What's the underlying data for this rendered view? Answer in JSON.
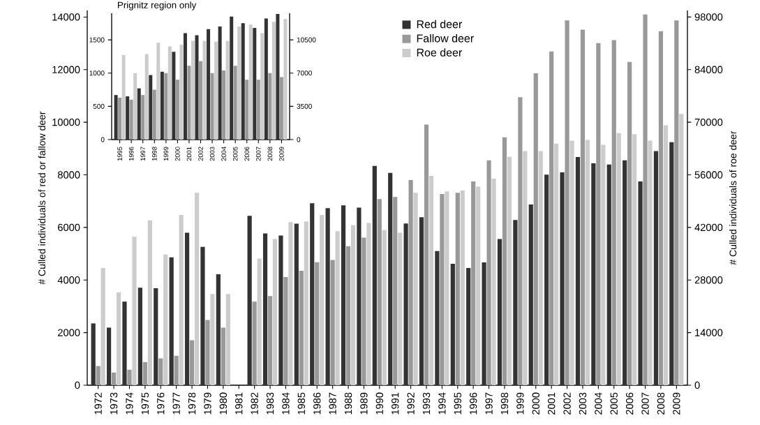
{
  "chart_data": [
    {
      "type": "bar",
      "categories": [
        "1972",
        "1973",
        "1974",
        "1975",
        "1976",
        "1977",
        "1978",
        "1979",
        "1980",
        "1981",
        "1982",
        "1983",
        "1984",
        "1985",
        "1986",
        "1987",
        "1988",
        "1989",
        "1990",
        "1991",
        "1992",
        "1993",
        "1994",
        "1995",
        "1996",
        "1997",
        "1998",
        "1999",
        "2000",
        "2001",
        "2002",
        "2003",
        "2004",
        "2005",
        "2006",
        "2007",
        "2008",
        "2009"
      ],
      "series": [
        {
          "name": "Red deer",
          "color": "#333333",
          "values": [
            2350,
            2190,
            3180,
            3710,
            3690,
            4860,
            5800,
            5260,
            4220,
            null,
            6440,
            5770,
            5690,
            6140,
            6920,
            6730,
            6840,
            6750,
            8340,
            8070,
            6150,
            6390,
            5100,
            4620,
            4460,
            4670,
            5560,
            6280,
            6870,
            8010,
            8090,
            8680,
            8440,
            8390,
            8550,
            7750,
            8900,
            9240
          ]
        },
        {
          "name": "Fallow deer",
          "color": "#999999",
          "values": [
            730,
            480,
            590,
            880,
            1020,
            1120,
            1710,
            2480,
            2190,
            null,
            3180,
            3390,
            4110,
            4350,
            4680,
            4760,
            5290,
            5610,
            7080,
            7160,
            7800,
            9910,
            7270,
            7320,
            7750,
            8550,
            9430,
            10950,
            11860,
            12690,
            13870,
            13520,
            13010,
            13120,
            12290,
            14100,
            13460,
            13870
          ]
        },
        {
          "name": "Roe deer",
          "color": "#cccccc",
          "axis": "y2",
          "values": [
            31200,
            24700,
            39500,
            43900,
            34800,
            45300,
            51200,
            24300,
            24300,
            null,
            33700,
            38900,
            43400,
            43600,
            45300,
            41000,
            42600,
            43200,
            41300,
            40600,
            51200,
            55700,
            51600,
            51800,
            52900,
            55000,
            60800,
            62300,
            62300,
            64300,
            65100,
            65300,
            64000,
            67100,
            66800,
            65100,
            69200,
            72200
          ]
        }
      ],
      "ylim": [
        0,
        14250
      ],
      "yticks": [
        0,
        2000,
        4000,
        6000,
        8000,
        10000,
        12000,
        14000
      ],
      "y2lim": [
        0,
        99750
      ],
      "y2ticks": [
        0,
        14000,
        28000,
        42000,
        56000,
        70000,
        84000,
        98000
      ],
      "ylabel": "# Culled individuals of red or fallow deer",
      "y2label": "# Culled individuals of roe deer",
      "legend": "top"
    },
    {
      "type": "bar",
      "title": "Prignitz region only",
      "categories": [
        "1995",
        "1996",
        "1997",
        "1998",
        "1999",
        "2000",
        "2001",
        "2002",
        "2003",
        "2004",
        "2005",
        "2006",
        "2007",
        "2008",
        "2009"
      ],
      "series": [
        {
          "color": "#333333",
          "values": [
            670,
            650,
            770,
            970,
            1020,
            1320,
            1600,
            1570,
            1660,
            1700,
            1850,
            1750,
            1680,
            1820,
            1890
          ]
        },
        {
          "color": "#999999",
          "values": [
            630,
            600,
            670,
            750,
            1000,
            900,
            1110,
            1180,
            1000,
            1040,
            1110,
            900,
            900,
            1000,
            940
          ]
        },
        {
          "color": "#cccccc",
          "axis": "y2",
          "values": [
            8900,
            7000,
            9000,
            10200,
            9800,
            10000,
            10400,
            10400,
            10300,
            10400,
            11900,
            12100,
            11200,
            12400,
            12700
          ]
        }
      ],
      "ylim": [
        0,
        1900
      ],
      "yticks": [
        0,
        500,
        1000,
        1500
      ],
      "y2lim": [
        0,
        13300
      ],
      "y2ticks": [
        0,
        3500,
        7000,
        10500
      ]
    }
  ]
}
